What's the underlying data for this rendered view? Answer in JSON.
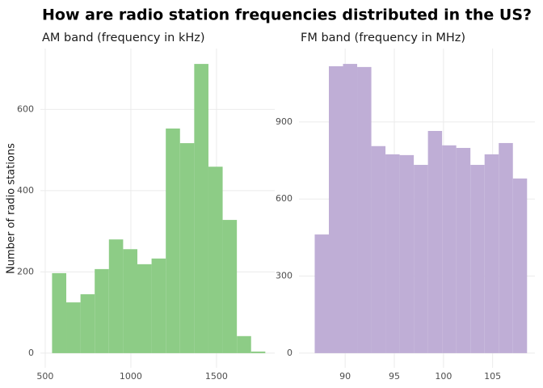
{
  "title": "How are radio station frequencies distributed in the US?",
  "chart_data": [
    {
      "type": "histogram",
      "subtitle": "AM band (frequency in kHz)",
      "y_label": "Number of radio stations",
      "color": "#8dcc86",
      "bins": [
        540,
        623,
        706,
        789,
        872,
        955,
        1038,
        1121,
        1204,
        1287,
        1370,
        1453,
        1536,
        1619,
        1702,
        1785
      ],
      "values": [
        197,
        125,
        145,
        207,
        280,
        256,
        219,
        233,
        553,
        517,
        712,
        459,
        328,
        42,
        4
      ],
      "xlim": [
        472,
        1840
      ],
      "xticks": [
        500,
        1000,
        1500
      ],
      "ylim": [
        -36,
        750
      ],
      "yticks": [
        0,
        200,
        400,
        600
      ],
      "grid": true
    },
    {
      "type": "histogram",
      "subtitle": "FM band (frequency in MHz)",
      "color": "#bfaed6",
      "bins": [
        86.9,
        88.34,
        89.78,
        91.22,
        92.66,
        94.1,
        95.54,
        96.98,
        98.42,
        99.86,
        101.3,
        102.74,
        104.18,
        105.62,
        107.06,
        108.5
      ],
      "values": [
        462,
        1117,
        1126,
        1114,
        806,
        774,
        771,
        733,
        865,
        809,
        799,
        733,
        774,
        818,
        680
      ],
      "xlim": [
        85.3,
        109.3
      ],
      "xticks": [
        90,
        95,
        100,
        105
      ],
      "ylim": [
        -57,
        1186
      ],
      "yticks": [
        0,
        300,
        600,
        900
      ],
      "grid": true
    }
  ]
}
